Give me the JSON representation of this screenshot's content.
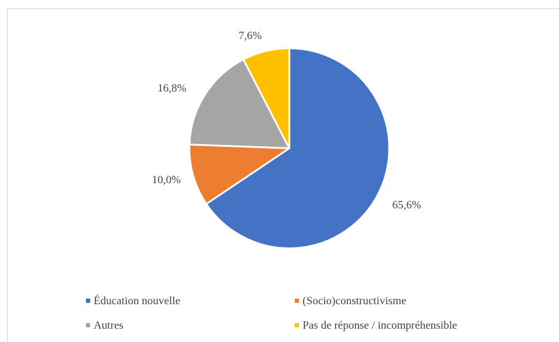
{
  "chart_data": {
    "type": "pie",
    "title": "",
    "legend_position": "bottom",
    "slices": [
      {
        "label": "Éducation nouvelle",
        "value": 65.6,
        "display": "65,6%",
        "color": "#4472C4"
      },
      {
        "label": "(Socio)constructivisme",
        "value": 10.0,
        "display": "10,0%",
        "color": "#ED7D31"
      },
      {
        "label": "Autres",
        "value": 16.8,
        "display": "16,8%",
        "color": "#A5A5A5"
      },
      {
        "label": "Pas de réponse / incompréhensible",
        "value": 7.6,
        "display": "7,6%",
        "color": "#FFC000"
      }
    ]
  }
}
